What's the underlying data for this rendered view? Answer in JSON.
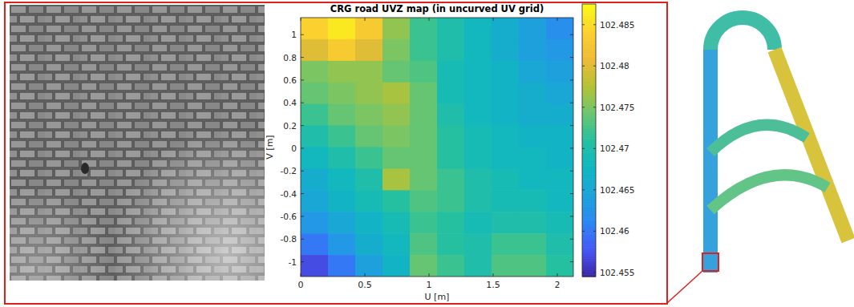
{
  "chart_data": {
    "type": "heatmap",
    "title": "CRG road UVZ map (in uncurved UV grid)",
    "xlabel": "U [m]",
    "ylabel": "V [m]",
    "xlim": [
      0,
      2.125
    ],
    "ylim": [
      -1.13,
      1.15
    ],
    "xticks": [
      0,
      0.5,
      1,
      1.5,
      2
    ],
    "yticks": [
      -1,
      -0.8,
      -0.6,
      -0.4,
      -0.2,
      0,
      0.2,
      0.4,
      0.6,
      0.8,
      1
    ],
    "x": [
      0.106,
      0.319,
      0.531,
      0.744,
      0.956,
      1.169,
      1.381,
      1.594,
      1.806,
      2.019
    ],
    "y": [
      1.055,
      0.865,
      0.675,
      0.485,
      0.295,
      0.105,
      -0.085,
      -0.275,
      -0.465,
      -0.655,
      -0.845,
      -1.035
    ],
    "cells": [
      [
        102.484,
        102.486,
        102.483,
        102.476,
        102.472,
        102.47,
        102.468,
        102.466,
        102.464,
        102.462
      ],
      [
        102.48,
        102.483,
        102.48,
        102.475,
        102.472,
        102.47,
        102.468,
        102.466,
        102.464,
        102.463
      ],
      [
        102.475,
        102.476,
        102.476,
        102.474,
        102.473,
        102.469,
        102.468,
        102.467,
        102.465,
        102.464
      ],
      [
        102.474,
        102.475,
        102.476,
        102.477,
        102.474,
        102.469,
        102.468,
        102.467,
        102.466,
        102.465
      ],
      [
        102.472,
        102.474,
        102.475,
        102.476,
        102.474,
        102.47,
        102.468,
        102.467,
        102.466,
        102.466
      ],
      [
        102.47,
        102.472,
        102.474,
        102.475,
        102.474,
        102.471,
        102.469,
        102.468,
        102.467,
        102.467
      ],
      [
        102.468,
        102.47,
        102.472,
        102.474,
        102.474,
        102.471,
        102.469,
        102.468,
        102.468,
        102.467
      ],
      [
        102.466,
        102.468,
        102.47,
        102.477,
        102.474,
        102.472,
        102.47,
        102.469,
        102.468,
        102.468
      ],
      [
        102.465,
        102.467,
        102.469,
        102.471,
        102.473,
        102.472,
        102.47,
        102.469,
        102.469,
        102.468
      ],
      [
        102.463,
        102.465,
        102.467,
        102.469,
        102.472,
        102.471,
        102.469,
        102.47,
        102.47,
        102.469
      ],
      [
        102.46,
        102.463,
        102.466,
        102.468,
        102.473,
        102.471,
        102.47,
        102.472,
        102.472,
        102.47
      ],
      [
        102.457,
        102.46,
        102.464,
        102.467,
        102.474,
        102.472,
        102.47,
        102.473,
        102.473,
        102.471
      ]
    ],
    "colorbar": {
      "range": [
        102.4545,
        102.4875
      ],
      "ticks": [
        102.455,
        102.46,
        102.465,
        102.47,
        102.475,
        102.48,
        102.485
      ]
    }
  }
}
